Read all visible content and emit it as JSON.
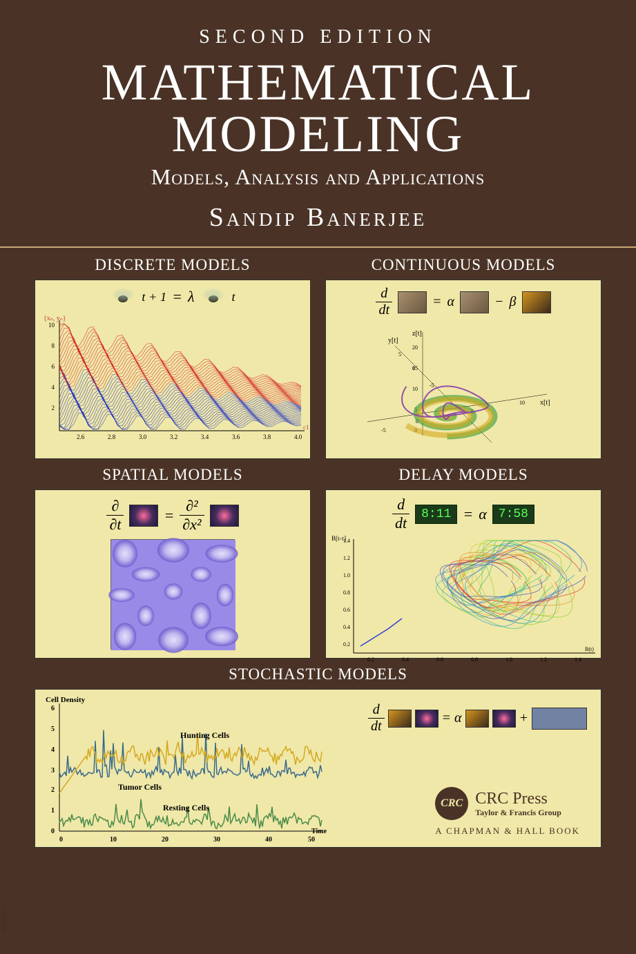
{
  "header": {
    "edition": "SECOND EDITION",
    "title_line1": "MATHEMATICAL",
    "title_line2": "MODELING",
    "subtitle": "Models, Analysis and Applications",
    "author": "Sandip Banerjee"
  },
  "panels": {
    "discrete": {
      "title": "DISCRETE MODELS",
      "eq_sub1": "t + 1",
      "eq_eq": "=",
      "eq_lambda": "λ",
      "eq_sub2": "t",
      "axis_label": "{xn, yn}",
      "axis_right": "c1",
      "y_ticks": [
        "10",
        "8",
        "6",
        "4",
        "2"
      ],
      "x_ticks": [
        "2.6",
        "2.8",
        "3.0",
        "3.2",
        "3.4",
        "3.6",
        "3.8",
        "4.0"
      ],
      "series1_color": "#d42020",
      "series2_color": "#2030c0",
      "background": "#f0e8a8"
    },
    "continuous": {
      "title": "CONTINUOUS MODELS",
      "d": "d",
      "dt": "dt",
      "eq": "=",
      "alpha": "α",
      "minus": "−",
      "beta": "β",
      "axis_x": "x[t]",
      "axis_y": "y[t]",
      "axis_z": "z[t]",
      "x_ticks": [
        "-5",
        "0",
        "5",
        "10"
      ],
      "y_ticks": [
        "-5",
        "0",
        "5"
      ],
      "z_ticks": [
        "0",
        "5",
        "10",
        "15",
        "20"
      ],
      "colors": {
        "spiral1": "#8b3fa8",
        "spiral2": "#2a9d3a",
        "spiral3": "#d4a820"
      }
    },
    "spatial": {
      "title": "SPATIAL MODELS",
      "partial": "∂",
      "partial_t": "∂t",
      "eq": "=",
      "partial2": "∂²",
      "partial_x2": "∂x²",
      "pattern_colors": [
        "#6a5acd",
        "#9a8ae8",
        "#c8c0f0",
        "#f0f0ff"
      ]
    },
    "delay": {
      "title": "DELAY MODELS",
      "d": "d",
      "dt": "dt",
      "time1": "8:11",
      "eq": "=",
      "alpha": "α",
      "time2": "7:58",
      "axis_y": "B[t-τ]",
      "axis_x": "B(t)",
      "y_ticks": [
        "0.2",
        "0.4",
        "0.6",
        "0.8",
        "1.0",
        "1.2",
        "1.4"
      ],
      "x_ticks": [
        "0.2",
        "0.4",
        "0.6",
        "0.8",
        "1.0",
        "1.2",
        "1.4"
      ]
    },
    "stochastic": {
      "title": "STOCHASTIC MODELS",
      "y_label": "Cell Density",
      "x_label": "Time",
      "series": {
        "hunting": {
          "label": "Hunting Cells",
          "color": "#d4a820"
        },
        "tumor": {
          "label": "Tumor Cells",
          "color": "#3a6a8a"
        },
        "resting": {
          "label": "Resting Cells",
          "color": "#4a8a4a"
        }
      },
      "y_ticks": [
        "0",
        "1",
        "2",
        "3",
        "4",
        "5",
        "6"
      ],
      "x_ticks": [
        "0",
        "10",
        "20",
        "30",
        "40",
        "50"
      ],
      "d": "d",
      "dt": "dt",
      "eq": "=",
      "alpha": "α",
      "plus": "+"
    }
  },
  "publisher": {
    "crc_abbr": "CRC",
    "crc_press": "CRC Press",
    "tf_group": "Taylor & Francis Group",
    "chapman": "A CHAPMAN & HALL BOOK"
  },
  "watermark": "ESTUDY"
}
